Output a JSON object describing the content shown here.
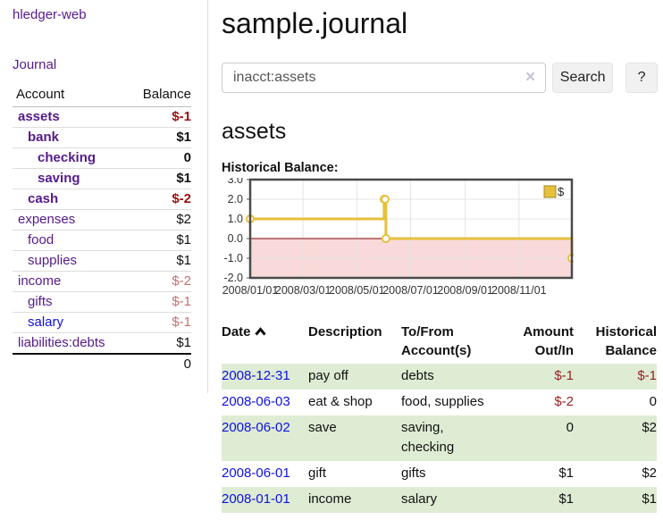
{
  "app": {
    "brand": "hledger-web",
    "nav_journal": "Journal"
  },
  "sidebar": {
    "header": {
      "account": "Account",
      "balance": "Balance"
    },
    "accounts": [
      {
        "name": "assets",
        "depth": 0,
        "bold": true,
        "balance": "$-1"
      },
      {
        "name": "bank",
        "depth": 1,
        "bold": true,
        "balance": "$1"
      },
      {
        "name": "checking",
        "depth": 2,
        "bold": true,
        "balance": "0"
      },
      {
        "name": "saving",
        "depth": 2,
        "bold": true,
        "balance": "$1"
      },
      {
        "name": "cash",
        "depth": 1,
        "bold": true,
        "balance": "$-2"
      },
      {
        "name": "expenses",
        "depth": 0,
        "bold": false,
        "balance": "$2"
      },
      {
        "name": "food",
        "depth": 1,
        "bold": false,
        "balance": "$1"
      },
      {
        "name": "supplies",
        "depth": 1,
        "bold": false,
        "balance": "$1"
      },
      {
        "name": "income",
        "depth": 0,
        "bold": false,
        "balance": "$-2"
      },
      {
        "name": "gifts",
        "depth": 1,
        "bold": false,
        "balance": "$-1"
      },
      {
        "name": "salary",
        "depth": 1,
        "bold": false,
        "balance": "$-1"
      },
      {
        "name": "liabilities:debts",
        "depth": 0,
        "bold": false,
        "balance": "$1"
      }
    ],
    "total": "0"
  },
  "header": {
    "title": "sample.journal"
  },
  "search": {
    "value": "inacct:assets",
    "clear_icon": "×",
    "button": "Search",
    "help": "?"
  },
  "account_page": {
    "title": "assets",
    "chart_label": "Historical Balance:"
  },
  "chart_data": {
    "type": "line",
    "step": true,
    "title": "Historical Balance",
    "legend": "$",
    "legend_position": "top-right",
    "grid": true,
    "ylim": [
      -2,
      3
    ],
    "xlim_days": [
      0,
      365
    ],
    "y_ticks": [
      3.0,
      2.0,
      1.0,
      0.0,
      -1.0,
      -2.0
    ],
    "x_ticks": [
      {
        "label": "2008/01/01",
        "day": 0
      },
      {
        "label": "2008/03/01",
        "day": 60
      },
      {
        "label": "2008/05/01",
        "day": 121
      },
      {
        "label": "2008/07/01",
        "day": 182
      },
      {
        "label": "2008/09/01",
        "day": 244
      },
      {
        "label": "2008/11/01",
        "day": 305
      }
    ],
    "series": [
      {
        "name": "$",
        "color": "#e6c03c",
        "points": [
          {
            "date": "2008/01/01",
            "day": 0,
            "value": 1
          },
          {
            "date": "2008/06/01",
            "day": 152,
            "value": 2
          },
          {
            "date": "2008/06/02",
            "day": 153,
            "value": 2
          },
          {
            "date": "2008/06/03",
            "day": 154,
            "value": 0
          },
          {
            "date": "2008/12/31",
            "day": 365,
            "value": -1
          }
        ]
      }
    ],
    "zero_line_color": "#7f0000",
    "negative_fill": "#f9d9d9",
    "grid_color": "#e4e4e4",
    "border_color": "#4a4a4a"
  },
  "register": {
    "columns": {
      "date": "Date",
      "description": "Description",
      "to_from": "To/From Account(s)",
      "amount": "Amount Out/In",
      "historical": "Historical Balance"
    },
    "rows": [
      {
        "date": "2008-12-31",
        "description": "pay off",
        "to_from": "debts",
        "amount": "$-1",
        "historical": "$-1"
      },
      {
        "date": "2008-06-03",
        "description": "eat & shop",
        "to_from": "food, supplies",
        "amount": "$-2",
        "historical": "0"
      },
      {
        "date": "2008-06-02",
        "description": "save",
        "to_from": "saving,\nchecking",
        "amount": "0",
        "historical": "$2"
      },
      {
        "date": "2008-06-01",
        "description": "gift",
        "to_from": "gifts",
        "amount": "$1",
        "historical": "$2"
      },
      {
        "date": "2008-01-01",
        "description": "income",
        "to_from": "salary",
        "amount": "$1",
        "historical": "$1"
      }
    ]
  }
}
